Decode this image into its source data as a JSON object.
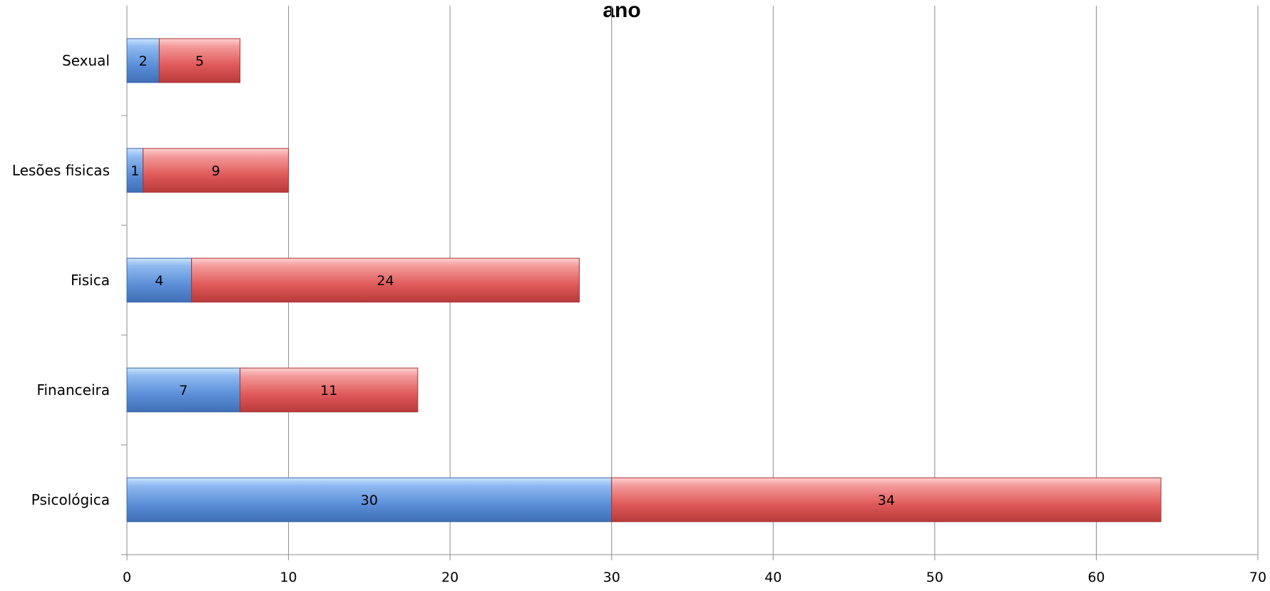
{
  "chart_data": {
    "type": "bar",
    "orientation": "horizontal",
    "stacked": true,
    "title": "ano",
    "xlabel": "",
    "ylabel": "",
    "categories": [
      "Psicológica",
      "Financeira",
      "Fisica",
      "Lesões fisicas",
      "Sexual"
    ],
    "series": [
      {
        "values": [
          30,
          7,
          4,
          1,
          2
        ],
        "color": "#5b8fd8"
      },
      {
        "values": [
          34,
          11,
          24,
          9,
          5
        ],
        "color": "#e05a5a"
      }
    ],
    "xlim": [
      0,
      70
    ],
    "xticks": [
      0,
      10,
      20,
      30,
      40,
      50,
      60,
      70
    ],
    "grid": true,
    "legend": "none"
  }
}
